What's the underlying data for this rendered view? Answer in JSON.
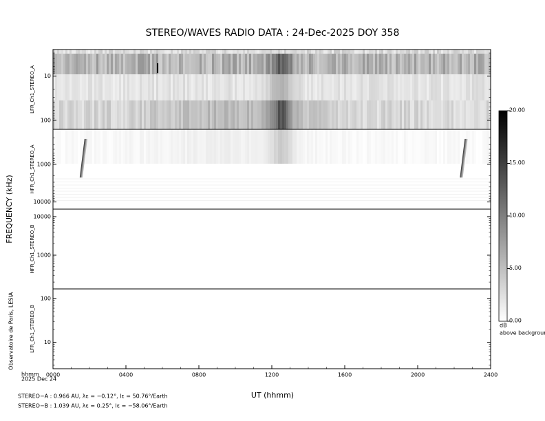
{
  "chart_data": {
    "type": "spectrogram",
    "title": "STEREO/WAVES  RADIO  DATA : 24-Dec-2025  DOY 358",
    "y_label": "FREQUENCY (kHz)",
    "x_label": "UT (hhmm)",
    "xlim": [
      0,
      24
    ],
    "xticks": [
      {
        "value": 0,
        "label": "0000"
      },
      {
        "value": 4,
        "label": "0400"
      },
      {
        "value": 8,
        "label": "0800"
      },
      {
        "value": 12,
        "label": "1200"
      },
      {
        "value": 16,
        "label": "1600"
      },
      {
        "value": 20,
        "label": "2000"
      },
      {
        "value": 24,
        "label": "2400"
      }
    ],
    "log_scale": true,
    "panels": [
      {
        "label": "LFR_Ch1_STEREO_A",
        "ylim": [
          2.5,
          160
        ],
        "inverted": true,
        "yticks": [
          10,
          100
        ]
      },
      {
        "label": "HFR_Ch1_STEREO_A",
        "ylim": [
          118,
          15500
        ],
        "inverted": true,
        "yticks": [
          1000,
          10000
        ]
      },
      {
        "label": "HFR_Ch1_STEREO_B",
        "ylim": [
          133,
          15700
        ],
        "inverted": false,
        "yticks": [
          1000,
          10000
        ]
      },
      {
        "label": "LFR_Ch1_STEREO_B",
        "ylim": [
          2.5,
          165
        ],
        "inverted": false,
        "yticks": [
          10,
          100
        ]
      }
    ],
    "colorbar": {
      "lim": [
        0,
        20
      ],
      "ticks": [
        {
          "value": 0,
          "label": "0.00"
        },
        {
          "value": 5,
          "label": "5.00"
        },
        {
          "value": 10,
          "label": "10.00"
        },
        {
          "value": 15,
          "label": "15.00"
        },
        {
          "value": 20,
          "label": "20.00"
        }
      ],
      "unit": "dB",
      "unit_note": "above background"
    },
    "time_unit": "hhmm",
    "date": "2025 Dec 24",
    "credit": "Observatoire de Paris, LESIA",
    "ephemeris": [
      "STEREO−A : 0.966 AU, λε = −0.12°, lε = 50.76°/Earth",
      "STEREO−B : 1.039 AU, λε = 0.25°, lε = −58.06°/Earth"
    ]
  }
}
